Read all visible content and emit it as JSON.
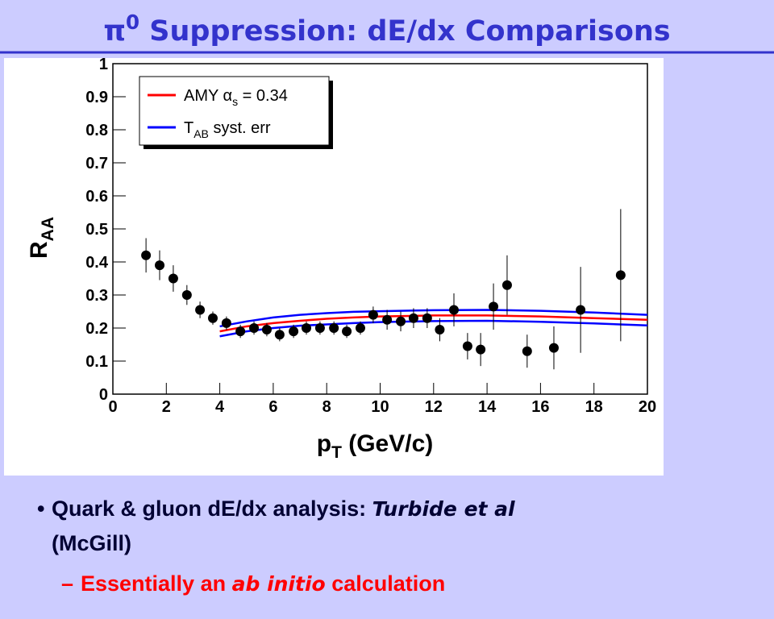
{
  "slide": {
    "title": [
      "π",
      "0",
      " Suppression: dE/dx Comparisons"
    ],
    "bullets": [
      {
        "text": "Quark & gluon dE/dx analysis: ",
        "italic": "Turbide et al",
        "continuation": "(McGill)"
      },
      {
        "text": "Essentially an ",
        "italic": "ab initio",
        "after": " calculation"
      }
    ]
  },
  "chart_data": {
    "type": "scatter",
    "x_label": [
      "p",
      "T",
      " (GeV/c)"
    ],
    "y_label": [
      "R",
      "AA"
    ],
    "xlim": [
      0,
      20
    ],
    "ylim": [
      0,
      1
    ],
    "xticks": [
      0,
      2,
      4,
      6,
      8,
      10,
      12,
      14,
      16,
      18,
      20
    ],
    "yticks": [
      0,
      0.1,
      0.2,
      0.3,
      0.4,
      0.5,
      0.6,
      0.7,
      0.8,
      0.9,
      1
    ],
    "legend": "upper-left",
    "points": {
      "color": "#000000",
      "x": [
        1.24,
        1.75,
        2.26,
        2.77,
        3.26,
        3.74,
        4.25,
        4.77,
        5.28,
        5.76,
        6.24,
        6.76,
        7.24,
        7.75,
        8.27,
        8.75,
        9.26,
        9.74,
        10.26,
        10.77,
        11.25,
        11.76,
        12.23,
        12.76,
        13.27,
        13.76,
        14.24,
        14.75,
        15.5,
        16.5,
        17.5,
        19
      ],
      "values": [
        0.42,
        0.39,
        0.35,
        0.3,
        0.255,
        0.23,
        0.215,
        0.19,
        0.2,
        0.195,
        0.18,
        0.19,
        0.2,
        0.2,
        0.2,
        0.19,
        0.2,
        0.24,
        0.225,
        0.22,
        0.23,
        0.23,
        0.195,
        0.255,
        0.145,
        0.135,
        0.265,
        0.33,
        0.13,
        0.14,
        0.255,
        0.36
      ],
      "errors": [
        0.052,
        0.045,
        0.04,
        0.03,
        0.025,
        0.02,
        0.02,
        0.02,
        0.02,
        0.02,
        0.02,
        0.02,
        0.02,
        0.02,
        0.02,
        0.02,
        0.02,
        0.025,
        0.03,
        0.03,
        0.03,
        0.03,
        0.035,
        0.05,
        0.04,
        0.05,
        0.07,
        0.09,
        0.05,
        0.065,
        0.13,
        0.2
      ]
    },
    "lines_x": [
      4,
      5,
      6,
      7,
      8,
      9,
      10,
      12,
      14,
      16,
      18,
      20
    ],
    "series": [
      {
        "name": [
          "AMY α",
          "s",
          " = 0.34"
        ],
        "color": "#ff0000",
        "values": [
          0.19,
          0.205,
          0.215,
          0.222,
          0.228,
          0.232,
          0.235,
          0.238,
          0.238,
          0.235,
          0.23,
          0.225
        ]
      },
      {
        "name": [
          "T",
          "AB",
          " syst. err"
        ],
        "color": "#0000ff",
        "upper": [
          0.205,
          0.22,
          0.232,
          0.24,
          0.245,
          0.249,
          0.251,
          0.254,
          0.255,
          0.252,
          0.247,
          0.24
        ],
        "lower": [
          0.175,
          0.19,
          0.2,
          0.207,
          0.211,
          0.215,
          0.218,
          0.221,
          0.222,
          0.219,
          0.214,
          0.208
        ]
      }
    ]
  }
}
